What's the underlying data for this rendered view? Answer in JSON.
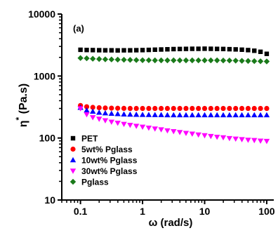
{
  "chart_data": {
    "type": "scatter",
    "panel_label": "(a)",
    "xlabel": "ω (rad/s)",
    "ylabel": "η* (Pa.s)",
    "x_scale": "log",
    "y_scale": "log",
    "xlim": [
      0.05,
      130
    ],
    "ylim": [
      10,
      10000
    ],
    "x_ticks": [
      0.1,
      1,
      10,
      100
    ],
    "x_tick_labels": [
      "0.1",
      "1",
      "10",
      "100"
    ],
    "y_ticks": [
      10,
      100,
      1000,
      10000
    ],
    "y_tick_labels": [
      "10",
      "100",
      "1000",
      "10000"
    ],
    "grid": false,
    "legend_position": "bottom-left",
    "x": [
      0.1,
      0.126,
      0.158,
      0.2,
      0.251,
      0.316,
      0.398,
      0.501,
      0.631,
      0.794,
      1,
      1.259,
      1.585,
      1.995,
      2.512,
      3.162,
      3.981,
      5.012,
      6.31,
      7.943,
      10,
      12.59,
      15.85,
      19.95,
      25.12,
      31.62,
      39.81,
      50.12,
      63.1,
      79.43,
      100
    ],
    "series": [
      {
        "name": "PET",
        "marker": "square",
        "color": "#000000",
        "values": [
          2650,
          2630,
          2620,
          2610,
          2600,
          2600,
          2590,
          2600,
          2600,
          2610,
          2620,
          2640,
          2660,
          2680,
          2700,
          2720,
          2730,
          2740,
          2750,
          2750,
          2760,
          2750,
          2740,
          2730,
          2710,
          2690,
          2660,
          2620,
          2560,
          2460,
          2280
        ]
      },
      {
        "name": "5wt% Pglass",
        "marker": "circle",
        "color": "#ff0000",
        "values": [
          335,
          320,
          312,
          308,
          305,
          303,
          302,
          301,
          300,
          300,
          300,
          300,
          300,
          300,
          300,
          300,
          300,
          300,
          300,
          300,
          300,
          300,
          300,
          300,
          300,
          300,
          300,
          300,
          300,
          300,
          300
        ]
      },
      {
        "name": "10wt% Pglass",
        "marker": "triangle-up",
        "color": "#0000ff",
        "values": [
          310,
          280,
          268,
          258,
          252,
          248,
          245,
          242,
          240,
          239,
          238,
          237,
          236,
          236,
          235,
          235,
          235,
          235,
          235,
          235,
          235,
          235,
          235,
          235,
          235,
          235,
          235,
          235,
          235,
          235,
          235
        ]
      },
      {
        "name": "30wt% Pglass",
        "marker": "triangle-down",
        "color": "#ff00ff",
        "values": [
          300,
          240,
          215,
          203,
          192,
          182,
          175,
          168,
          162,
          156,
          151,
          146,
          141,
          137,
          132,
          128,
          124,
          120,
          117,
          113,
          110,
          107,
          104,
          102,
          99,
          97,
          95,
          93,
          92,
          90,
          89
        ]
      },
      {
        "name": "Pglass",
        "marker": "diamond",
        "color": "#1a7a1a",
        "values": [
          1950,
          1930,
          1900,
          1880,
          1860,
          1850,
          1840,
          1830,
          1820,
          1810,
          1800,
          1800,
          1790,
          1790,
          1790,
          1790,
          1790,
          1790,
          1790,
          1790,
          1790,
          1790,
          1790,
          1780,
          1780,
          1770,
          1760,
          1750,
          1740,
          1730,
          1720
        ]
      }
    ]
  }
}
